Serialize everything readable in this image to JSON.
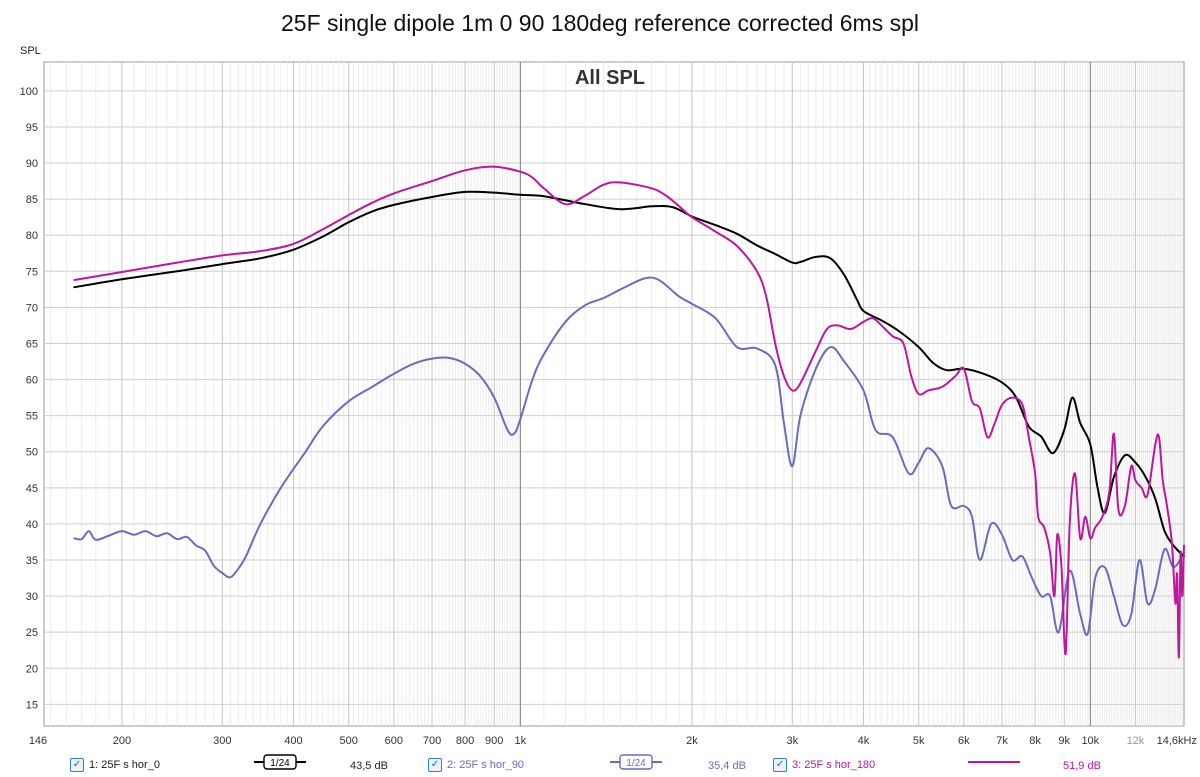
{
  "chart_data": {
    "type": "line",
    "title": "25F single dipole 1m 0 90 180deg reference corrected 6ms spl",
    "subtitle": "All SPL",
    "ylabel": "SPL",
    "xunit": "kHz",
    "xscale": "log",
    "xlim": [
      146,
      14600
    ],
    "ylim": [
      12,
      104
    ],
    "grid": true,
    "x_ticks": [
      {
        "v": 146,
        "label": "146",
        "minor": false
      },
      {
        "v": 200,
        "label": "200",
        "minor": false
      },
      {
        "v": 300,
        "label": "300",
        "minor": false
      },
      {
        "v": 400,
        "label": "400",
        "minor": false
      },
      {
        "v": 500,
        "label": "500",
        "minor": false
      },
      {
        "v": 600,
        "label": "600",
        "minor": false
      },
      {
        "v": 700,
        "label": "700",
        "minor": false
      },
      {
        "v": 800,
        "label": "800",
        "minor": false
      },
      {
        "v": 900,
        "label": "900",
        "minor": false
      },
      {
        "v": 1000,
        "label": "1k",
        "minor": false
      },
      {
        "v": 2000,
        "label": "2k",
        "minor": false
      },
      {
        "v": 3000,
        "label": "3k",
        "minor": false
      },
      {
        "v": 4000,
        "label": "4k",
        "minor": false
      },
      {
        "v": 5000,
        "label": "5k",
        "minor": false
      },
      {
        "v": 6000,
        "label": "6k",
        "minor": false
      },
      {
        "v": 7000,
        "label": "7k",
        "minor": false
      },
      {
        "v": 8000,
        "label": "8k",
        "minor": false
      },
      {
        "v": 9000,
        "label": "9k",
        "minor": false
      },
      {
        "v": 10000,
        "label": "10k",
        "minor": false
      },
      {
        "v": 12000,
        "label": "12k",
        "minor": true
      },
      {
        "v": 14600,
        "label": "14,6kHz",
        "minor": false
      }
    ],
    "y_ticks": [
      100,
      95,
      90,
      85,
      80,
      75,
      70,
      65,
      60,
      55,
      50,
      45,
      40,
      35,
      30,
      25,
      20,
      15
    ],
    "series": [
      {
        "name": "1: 25F s hor_0",
        "color": "#000000",
        "smoothing": "1/24",
        "level": "43,5 dB",
        "points": [
          [
            165,
            72.8
          ],
          [
            200,
            73.9
          ],
          [
            250,
            75.0
          ],
          [
            300,
            76.0
          ],
          [
            350,
            76.8
          ],
          [
            400,
            78.0
          ],
          [
            450,
            79.8
          ],
          [
            500,
            81.8
          ],
          [
            550,
            83.3
          ],
          [
            600,
            84.2
          ],
          [
            700,
            85.3
          ],
          [
            800,
            86.0
          ],
          [
            900,
            85.9
          ],
          [
            1000,
            85.6
          ],
          [
            1100,
            85.4
          ],
          [
            1300,
            84.3
          ],
          [
            1500,
            83.6
          ],
          [
            1700,
            84.0
          ],
          [
            1850,
            83.9
          ],
          [
            2000,
            82.6
          ],
          [
            2200,
            81.4
          ],
          [
            2400,
            80.2
          ],
          [
            2600,
            78.6
          ],
          [
            2800,
            77.4
          ],
          [
            3000,
            76.2
          ],
          [
            3100,
            76.3
          ],
          [
            3300,
            77.0
          ],
          [
            3500,
            76.8
          ],
          [
            3700,
            74.5
          ],
          [
            3900,
            71.0
          ],
          [
            4000,
            69.5
          ],
          [
            4300,
            68.2
          ],
          [
            4600,
            66.8
          ],
          [
            5000,
            64.5
          ],
          [
            5300,
            62.3
          ],
          [
            5600,
            61.3
          ],
          [
            6000,
            61.5
          ],
          [
            6500,
            60.8
          ],
          [
            7000,
            59.6
          ],
          [
            7400,
            57.6
          ],
          [
            7800,
            53.5
          ],
          [
            8200,
            52.1
          ],
          [
            8600,
            49.8
          ],
          [
            9000,
            53.0
          ],
          [
            9300,
            57.5
          ],
          [
            9600,
            54.0
          ],
          [
            10000,
            51.0
          ],
          [
            10300,
            45.0
          ],
          [
            10600,
            41.5
          ],
          [
            11000,
            46.5
          ],
          [
            11500,
            49.5
          ],
          [
            12000,
            48.5
          ],
          [
            12500,
            46.5
          ],
          [
            13000,
            43.5
          ],
          [
            13500,
            39.0
          ],
          [
            14000,
            37.0
          ],
          [
            14600,
            35.5
          ]
        ]
      },
      {
        "name": "2: 25F s hor_90",
        "color": "#6b6bbf",
        "smoothing": "1/24",
        "level": "35,4 dB",
        "points": [
          [
            165,
            38.0
          ],
          [
            170,
            37.9
          ],
          [
            175,
            39.0
          ],
          [
            180,
            37.8
          ],
          [
            190,
            38.4
          ],
          [
            200,
            39.0
          ],
          [
            210,
            38.5
          ],
          [
            220,
            39.0
          ],
          [
            230,
            38.3
          ],
          [
            240,
            38.7
          ],
          [
            250,
            37.9
          ],
          [
            260,
            38.2
          ],
          [
            270,
            37.0
          ],
          [
            280,
            36.3
          ],
          [
            290,
            34.2
          ],
          [
            300,
            33.2
          ],
          [
            310,
            32.6
          ],
          [
            320,
            33.8
          ],
          [
            330,
            35.5
          ],
          [
            350,
            40.0
          ],
          [
            380,
            45.0
          ],
          [
            420,
            50.0
          ],
          [
            450,
            53.5
          ],
          [
            500,
            57.0
          ],
          [
            550,
            59.0
          ],
          [
            600,
            60.8
          ],
          [
            650,
            62.2
          ],
          [
            700,
            62.9
          ],
          [
            750,
            63.0
          ],
          [
            800,
            62.2
          ],
          [
            850,
            60.5
          ],
          [
            900,
            57.5
          ],
          [
            950,
            53.0
          ],
          [
            975,
            52.5
          ],
          [
            1000,
            54.5
          ],
          [
            1050,
            60.0
          ],
          [
            1100,
            63.5
          ],
          [
            1200,
            68.0
          ],
          [
            1300,
            70.3
          ],
          [
            1400,
            71.3
          ],
          [
            1500,
            72.5
          ],
          [
            1650,
            74.0
          ],
          [
            1750,
            73.8
          ],
          [
            1900,
            71.5
          ],
          [
            2000,
            70.5
          ],
          [
            2200,
            68.5
          ],
          [
            2400,
            64.5
          ],
          [
            2600,
            64.3
          ],
          [
            2800,
            62.0
          ],
          [
            2900,
            54.0
          ],
          [
            3000,
            48.0
          ],
          [
            3100,
            55.0
          ],
          [
            3300,
            61.5
          ],
          [
            3500,
            64.5
          ],
          [
            3700,
            62.5
          ],
          [
            4000,
            58.5
          ],
          [
            4200,
            53.0
          ],
          [
            4500,
            52.0
          ],
          [
            4800,
            47.0
          ],
          [
            5000,
            48.5
          ],
          [
            5200,
            50.5
          ],
          [
            5500,
            48.0
          ],
          [
            5700,
            42.5
          ],
          [
            6000,
            42.5
          ],
          [
            6200,
            41.0
          ],
          [
            6400,
            35.0
          ],
          [
            6700,
            40.0
          ],
          [
            7000,
            38.5
          ],
          [
            7300,
            35.0
          ],
          [
            7600,
            35.5
          ],
          [
            7900,
            32.5
          ],
          [
            8200,
            30.0
          ],
          [
            8500,
            30.0
          ],
          [
            8800,
            25.0
          ],
          [
            9200,
            33.5
          ],
          [
            9600,
            27.5
          ],
          [
            9900,
            24.8
          ],
          [
            10200,
            32.5
          ],
          [
            10600,
            34.0
          ],
          [
            11000,
            30.0
          ],
          [
            11400,
            26.0
          ],
          [
            11800,
            27.5
          ],
          [
            12200,
            35.0
          ],
          [
            12600,
            29.0
          ],
          [
            13000,
            31.0
          ],
          [
            13500,
            36.5
          ],
          [
            14000,
            34.0
          ],
          [
            14600,
            36.0
          ]
        ]
      },
      {
        "name": "3: 25F s hor_180",
        "color": "#c0169c",
        "smoothing": "",
        "level": "51,9 dB",
        "points": [
          [
            165,
            73.8
          ],
          [
            200,
            74.9
          ],
          [
            250,
            76.2
          ],
          [
            300,
            77.2
          ],
          [
            350,
            77.8
          ],
          [
            400,
            78.8
          ],
          [
            450,
            80.8
          ],
          [
            500,
            82.8
          ],
          [
            550,
            84.5
          ],
          [
            600,
            85.8
          ],
          [
            700,
            87.5
          ],
          [
            800,
            89.0
          ],
          [
            900,
            89.5
          ],
          [
            1000,
            88.8
          ],
          [
            1050,
            88.0
          ],
          [
            1100,
            86.5
          ],
          [
            1200,
            84.3
          ],
          [
            1300,
            85.5
          ],
          [
            1400,
            87.0
          ],
          [
            1500,
            87.3
          ],
          [
            1700,
            86.5
          ],
          [
            1800,
            85.5
          ],
          [
            1900,
            84.0
          ],
          [
            2000,
            82.5
          ],
          [
            2200,
            80.5
          ],
          [
            2400,
            78.5
          ],
          [
            2600,
            75.0
          ],
          [
            2700,
            71.5
          ],
          [
            2800,
            65.0
          ],
          [
            2900,
            60.5
          ],
          [
            3000,
            58.5
          ],
          [
            3100,
            59.5
          ],
          [
            3300,
            64.0
          ],
          [
            3450,
            67.0
          ],
          [
            3600,
            67.5
          ],
          [
            3800,
            67.0
          ],
          [
            4000,
            68.0
          ],
          [
            4150,
            68.5
          ],
          [
            4300,
            67.5
          ],
          [
            4500,
            66.0
          ],
          [
            4700,
            65.0
          ],
          [
            4850,
            60.5
          ],
          [
            5000,
            58.0
          ],
          [
            5200,
            58.5
          ],
          [
            5500,
            59.0
          ],
          [
            5800,
            60.5
          ],
          [
            6000,
            61.5
          ],
          [
            6200,
            57.0
          ],
          [
            6400,
            56.0
          ],
          [
            6600,
            52.0
          ],
          [
            6800,
            54.0
          ],
          [
            7000,
            56.5
          ],
          [
            7300,
            57.5
          ],
          [
            7600,
            56.5
          ],
          [
            7800,
            52.0
          ],
          [
            8000,
            47.0
          ],
          [
            8100,
            41.0
          ],
          [
            8300,
            39.5
          ],
          [
            8500,
            36.0
          ],
          [
            8650,
            30.0
          ],
          [
            8750,
            38.5
          ],
          [
            8900,
            34.0
          ],
          [
            9050,
            22.0
          ],
          [
            9200,
            40.0
          ],
          [
            9400,
            47.0
          ],
          [
            9600,
            38.0
          ],
          [
            9800,
            41.0
          ],
          [
            10000,
            38.0
          ],
          [
            10200,
            39.5
          ],
          [
            10500,
            41.0
          ],
          [
            10800,
            44.5
          ],
          [
            11000,
            52.5
          ],
          [
            11200,
            42.0
          ],
          [
            11500,
            42.5
          ],
          [
            11800,
            48.0
          ],
          [
            12000,
            46.0
          ],
          [
            12300,
            45.0
          ],
          [
            12600,
            44.0
          ],
          [
            13000,
            51.0
          ],
          [
            13200,
            52.0
          ],
          [
            13400,
            46.0
          ],
          [
            13600,
            43.0
          ],
          [
            13900,
            37.5
          ],
          [
            14100,
            29.0
          ],
          [
            14200,
            33.0
          ],
          [
            14300,
            21.5
          ],
          [
            14400,
            36.0
          ],
          [
            14500,
            30.0
          ],
          [
            14600,
            37.0
          ]
        ]
      }
    ]
  }
}
